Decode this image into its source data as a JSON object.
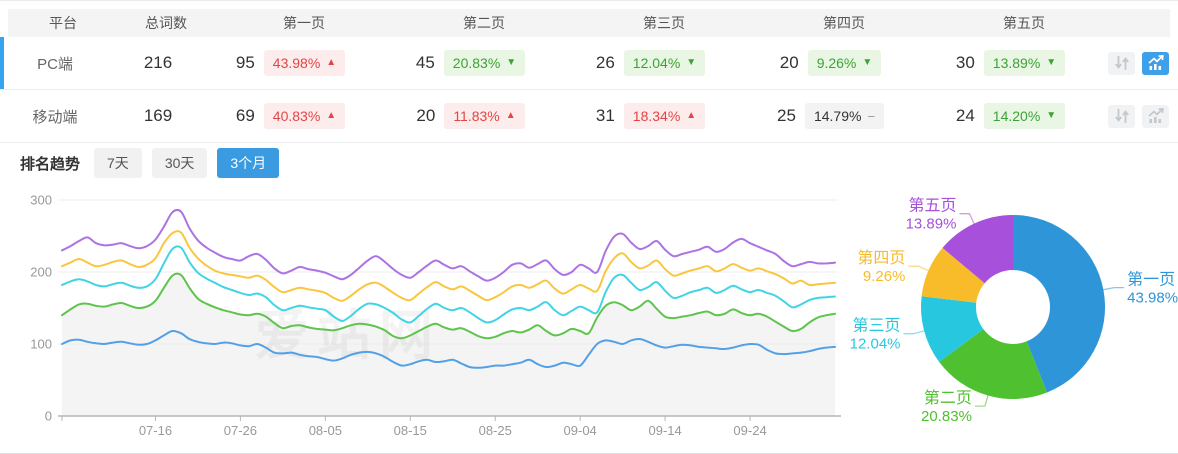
{
  "colors": {
    "accent_blue": "#36a3f0",
    "tab_active": "#3a9be0",
    "badge_up_red": "#e34545",
    "badge_down_green": "#3da237"
  },
  "table": {
    "columns": [
      "平台",
      "总词数",
      "第一页",
      "第二页",
      "第三页",
      "第四页",
      "第五页"
    ],
    "rows": [
      {
        "platform": "PC端",
        "total": "216",
        "active": true,
        "pages": [
          {
            "count": "95",
            "pct": "43.98%",
            "dir": "up"
          },
          {
            "count": "45",
            "pct": "20.83%",
            "dir": "down"
          },
          {
            "count": "26",
            "pct": "12.04%",
            "dir": "down"
          },
          {
            "count": "20",
            "pct": "9.26%",
            "dir": "down"
          },
          {
            "count": "30",
            "pct": "13.89%",
            "dir": "down"
          }
        ],
        "actions": {
          "sort_icon": "sort-arrows-icon",
          "trend_icon": "trend-chart-icon",
          "trend_active": true
        }
      },
      {
        "platform": "移动端",
        "total": "169",
        "active": false,
        "pages": [
          {
            "count": "69",
            "pct": "40.83%",
            "dir": "up"
          },
          {
            "count": "20",
            "pct": "11.83%",
            "dir": "up"
          },
          {
            "count": "31",
            "pct": "18.34%",
            "dir": "up"
          },
          {
            "count": "25",
            "pct": "14.79%",
            "dir": "flat"
          },
          {
            "count": "24",
            "pct": "14.20%",
            "dir": "down"
          }
        ],
        "actions": {
          "sort_icon": "sort-arrows-icon",
          "trend_icon": "trend-chart-icon",
          "trend_active": false
        }
      }
    ]
  },
  "trend": {
    "title": "排名趋势",
    "tabs": [
      {
        "label": "7天",
        "active": false
      },
      {
        "label": "30天",
        "active": false
      },
      {
        "label": "3个月",
        "active": true
      }
    ]
  },
  "watermark": "爱站网",
  "chart_data": [
    {
      "type": "line",
      "title": "排名趋势 3个月",
      "x_ticks": [
        "07-16",
        "07-26",
        "08-05",
        "08-15",
        "08-25",
        "09-04",
        "09-14",
        "09-24"
      ],
      "x_tick_indices": [
        11,
        21,
        31,
        41,
        51,
        61,
        71,
        81
      ],
      "ylim": [
        0,
        300
      ],
      "y_ticks": [
        0,
        100,
        200,
        300
      ],
      "grid": true,
      "legend": false,
      "series": [
        {
          "name": "blue",
          "color": "#54a0e6",
          "area": null,
          "values": [
            100,
            105,
            106,
            103,
            101,
            100,
            102,
            103,
            101,
            99,
            100,
            105,
            112,
            118,
            115,
            107,
            103,
            101,
            100,
            102,
            101,
            98,
            97,
            100,
            95,
            88,
            87,
            88,
            85,
            83,
            82,
            79,
            77,
            80,
            85,
            88,
            89,
            87,
            82,
            75,
            70,
            72,
            76,
            78,
            75,
            76,
            78,
            73,
            68,
            67,
            68,
            70,
            70,
            72,
            74,
            78,
            72,
            68,
            70,
            74,
            72,
            70,
            85,
            100,
            105,
            103,
            100,
            105,
            107,
            103,
            98,
            95,
            97,
            99,
            98,
            96,
            95,
            94,
            93,
            95,
            98,
            100,
            99,
            92,
            87,
            86,
            87,
            88,
            90,
            93,
            95,
            96
          ]
        },
        {
          "name": "green",
          "color": "#5ec44d",
          "area": "#f4f4f4",
          "values": [
            140,
            148,
            155,
            156,
            153,
            152,
            155,
            157,
            153,
            150,
            152,
            160,
            178,
            195,
            196,
            178,
            163,
            156,
            151,
            147,
            144,
            141,
            140,
            142,
            138,
            129,
            122,
            125,
            126,
            123,
            121,
            120,
            119,
            122,
            126,
            128,
            127,
            124,
            119,
            111,
            108,
            112,
            118,
            124,
            128,
            123,
            120,
            122,
            117,
            111,
            108,
            110,
            115,
            118,
            116,
            120,
            126,
            118,
            112,
            115,
            121,
            118,
            115,
            137,
            153,
            158,
            154,
            147,
            152,
            160,
            149,
            138,
            136,
            138,
            140,
            143,
            145,
            140,
            142,
            148,
            143,
            140,
            142,
            138,
            131,
            124,
            118,
            121,
            130,
            137,
            140,
            142
          ]
        },
        {
          "name": "cyan",
          "color": "#41d4e4",
          "area": null,
          "values": [
            182,
            187,
            190,
            187,
            182,
            180,
            183,
            185,
            181,
            178,
            180,
            190,
            212,
            232,
            234,
            214,
            199,
            191,
            185,
            179,
            175,
            171,
            168,
            170,
            165,
            154,
            147,
            150,
            153,
            151,
            149,
            147,
            138,
            132,
            139,
            149,
            156,
            155,
            150,
            143,
            134,
            130,
            139,
            149,
            156,
            150,
            147,
            150,
            144,
            136,
            130,
            133,
            141,
            148,
            150,
            147,
            152,
            158,
            147,
            140,
            146,
            152,
            147,
            144,
            172,
            192,
            196,
            185,
            175,
            179,
            186,
            174,
            164,
            167,
            172,
            175,
            178,
            171,
            175,
            181,
            176,
            172,
            175,
            171,
            167,
            159,
            151,
            155,
            161,
            164,
            165,
            166
          ]
        },
        {
          "name": "yellow",
          "color": "#f9c63e",
          "area": null,
          "values": [
            208,
            213,
            218,
            213,
            208,
            210,
            214,
            216,
            211,
            207,
            210,
            219,
            240,
            254,
            255,
            234,
            219,
            209,
            202,
            198,
            196,
            194,
            192,
            195,
            189,
            179,
            172,
            175,
            178,
            176,
            174,
            171,
            164,
            160,
            167,
            176,
            183,
            185,
            179,
            171,
            164,
            161,
            170,
            179,
            186,
            180,
            176,
            180,
            174,
            167,
            161,
            165,
            172,
            180,
            182,
            178,
            183,
            188,
            177,
            170,
            176,
            182,
            177,
            174,
            201,
            219,
            226,
            214,
            205,
            209,
            216,
            204,
            195,
            198,
            202,
            205,
            208,
            201,
            205,
            211,
            206,
            202,
            205,
            201,
            197,
            191,
            184,
            188,
            182,
            183,
            184,
            185
          ]
        },
        {
          "name": "purple",
          "color": "#ad72e3",
          "area": null,
          "values": [
            230,
            236,
            243,
            248,
            240,
            237,
            238,
            240,
            236,
            233,
            236,
            245,
            263,
            283,
            284,
            261,
            244,
            234,
            227,
            221,
            218,
            216,
            222,
            225,
            217,
            205,
            198,
            202,
            207,
            204,
            202,
            199,
            194,
            190,
            196,
            206,
            216,
            222,
            214,
            204,
            196,
            192,
            200,
            209,
            216,
            210,
            205,
            208,
            201,
            194,
            188,
            192,
            200,
            210,
            212,
            206,
            211,
            216,
            204,
            196,
            200,
            210,
            205,
            200,
            229,
            249,
            253,
            241,
            232,
            236,
            243,
            231,
            222,
            225,
            228,
            231,
            235,
            228,
            232,
            241,
            246,
            240,
            235,
            230,
            225,
            215,
            208,
            211,
            214,
            212,
            212,
            213
          ]
        }
      ]
    },
    {
      "type": "pie",
      "donut": true,
      "start": "top",
      "direction": "clockwise",
      "labels": [
        "第一页",
        "第二页",
        "第三页",
        "第四页",
        "第五页"
      ],
      "values": [
        43.98,
        20.83,
        12.04,
        9.26,
        13.89
      ],
      "colors": [
        "#2e95d8",
        "#4fc02f",
        "#27c8df",
        "#f8bb2a",
        "#a750dc"
      ]
    }
  ]
}
